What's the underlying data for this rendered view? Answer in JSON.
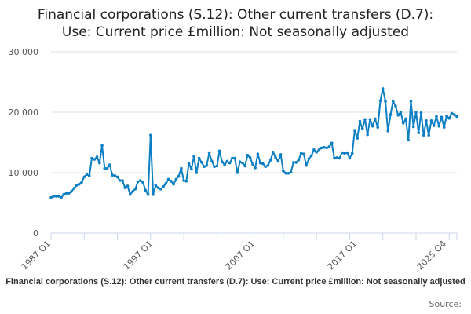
{
  "chart_data": {
    "type": "line",
    "title": "Financial corporations (S.12): Other current transfers (D.7): Use: Current price £million: Not seasonally adjusted",
    "title_lines": [
      "Financial corporations (S.12): Other current transfers (D.7):",
      "Use: Current price £million: Not seasonally adjusted"
    ],
    "xlabel": "",
    "ylabel": "",
    "ylim": [
      0,
      30000
    ],
    "yticks": [
      0,
      10000,
      20000,
      30000
    ],
    "ytick_labels": [
      "0",
      "10 000",
      "20 000",
      "30 000"
    ],
    "xtick_labels": [
      {
        "label": "1987 Q1",
        "index": 0
      },
      {
        "label": "1997 Q1",
        "index": 40
      },
      {
        "label": "2007 Q1",
        "index": 80
      },
      {
        "label": "2017 Q1",
        "index": 120
      },
      {
        "label": "2025 Q4",
        "index": 155
      }
    ],
    "grid": true,
    "start": "1987 Q1",
    "end": "2025 Q4",
    "series": [
      {
        "name": "Financial corporations (S.12): Other current transfers (D.7): Use: Current price £million: Not seasonally adjusted",
        "color": "#0b7ec4",
        "values": [
          5900,
          6100,
          6100,
          6100,
          5900,
          6400,
          6600,
          6600,
          6900,
          7400,
          7900,
          8100,
          8400,
          9300,
          9700,
          9500,
          12400,
          12200,
          12600,
          11600,
          14500,
          10700,
          10700,
          11300,
          9600,
          9500,
          9300,
          8700,
          8700,
          7500,
          7800,
          6400,
          6900,
          7300,
          8500,
          8700,
          8400,
          7100,
          6400,
          16200,
          6400,
          7900,
          7500,
          7300,
          7700,
          8200,
          8900,
          8600,
          8100,
          8900,
          9400,
          10700,
          8700,
          8600,
          11500,
          10600,
          12700,
          10000,
          12400,
          11700,
          11000,
          11200,
          13300,
          11900,
          11000,
          11100,
          13600,
          11800,
          11300,
          11900,
          11600,
          12400,
          12400,
          10000,
          11800,
          11600,
          11100,
          12900,
          12500,
          11400,
          10800,
          13100,
          11600,
          11500,
          11000,
          11200,
          12100,
          13400,
          12500,
          11900,
          13000,
          10300,
          9900,
          9900,
          10100,
          11700,
          11700,
          12100,
          13200,
          13100,
          11200,
          12300,
          12800,
          13800,
          13400,
          13800,
          14100,
          14200,
          14100,
          14300,
          14900,
          12400,
          12500,
          12400,
          13300,
          13200,
          13300,
          12400,
          13200,
          17000,
          15700,
          18500,
          17300,
          18800,
          16300,
          18800,
          17700,
          18900,
          17500,
          21900,
          23900,
          21800,
          16900,
          19600,
          21800,
          21000,
          19500,
          20000,
          18200,
          18900,
          15400,
          21800,
          17600,
          20000,
          16600,
          19900,
          16200,
          18600,
          16200,
          18600,
          17800,
          19300,
          17700,
          19200,
          17500,
          19400,
          19000,
          19800,
          19600,
          19300
        ]
      }
    ],
    "source_label": "Source:"
  }
}
